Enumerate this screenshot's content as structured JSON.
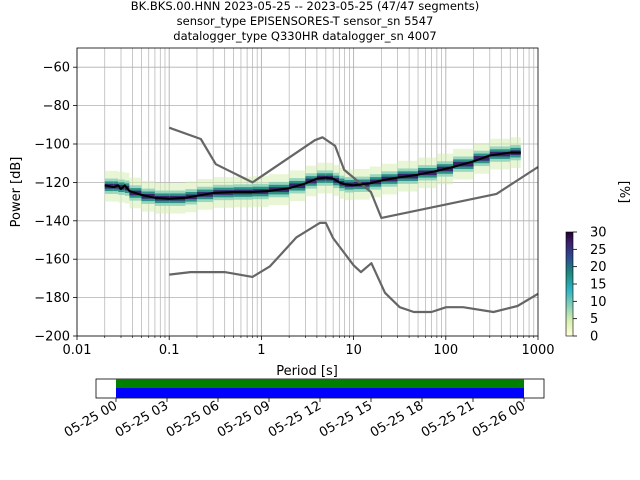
{
  "title_lines": [
    "BK.BKS.00.HNN   2023-05-25 -- 2023-05-25  (47/47 segments)",
    "sensor_type EPISENSORES-T sensor_sn 5547",
    "datalogger_type Q330HR datalogger_sn 4007"
  ],
  "chart_data": {
    "type": "line",
    "xlabel": "Period [s]",
    "ylabel": "Power [dB]",
    "xscale": "log",
    "xlim": [
      0.01,
      1000
    ],
    "ylim": [
      -200,
      -50
    ],
    "grid": true,
    "x_ticks": [
      0.01,
      0.1,
      1,
      10,
      100,
      1000
    ],
    "x_tick_labels": [
      "0.01",
      "0.1",
      "1",
      "10",
      "100",
      "1000"
    ],
    "y_ticks": [
      -200,
      -180,
      -160,
      -140,
      -120,
      -100,
      -80,
      -60
    ],
    "y_tick_labels": [
      "−200",
      "−180",
      "−160",
      "−140",
      "−120",
      "−100",
      "−80",
      "−60"
    ],
    "series": [
      {
        "role": "high-noise-model",
        "color": "#666666",
        "x": [
          0.1,
          0.22,
          0.32,
          0.8,
          3.8,
          4.6,
          6.3,
          7.9,
          15.4,
          20,
          354.8,
          1000
        ],
        "y": [
          -91.5,
          -97.4,
          -110.5,
          -120,
          -98,
          -96.5,
          -101,
          -113.5,
          -125,
          -138.5,
          -126,
          -112
        ]
      },
      {
        "role": "low-noise-model",
        "color": "#666666",
        "x": [
          0.1,
          0.17,
          0.4,
          0.8,
          1.24,
          2.4,
          4.3,
          5,
          6,
          10,
          12,
          15.6,
          21.9,
          31.6,
          45,
          70,
          101,
          154,
          328,
          600,
          1000
        ],
        "y": [
          -168,
          -166.7,
          -166.7,
          -169.2,
          -163.7,
          -148.6,
          -141.1,
          -141.1,
          -149,
          -163.2,
          -166.7,
          -162.1,
          -177.5,
          -185,
          -187.5,
          -187.5,
          -185,
          -185,
          -187.5,
          -184.4,
          -178
        ]
      },
      {
        "role": "mode",
        "color": "#000000",
        "x": [
          0.02,
          0.025,
          0.028,
          0.03,
          0.033,
          0.037,
          0.05,
          0.07,
          0.1,
          0.15,
          0.2,
          0.3,
          0.5,
          0.8,
          1.2,
          2,
          3,
          4,
          5,
          6,
          7,
          8,
          10,
          15,
          20,
          30,
          50,
          80,
          120,
          200,
          300,
          500,
          650
        ],
        "y": [
          -121.5,
          -122.5,
          -121.5,
          -123.5,
          -121.5,
          -124.5,
          -126.5,
          -128,
          -128.5,
          -128,
          -127,
          -125.5,
          -125,
          -125,
          -124.5,
          -123,
          -120.5,
          -118,
          -117.5,
          -118,
          -120,
          -121,
          -121.5,
          -120.5,
          -119,
          -117.5,
          -116,
          -114,
          -112,
          -109,
          -106,
          -104.5,
          -104.5
        ]
      }
    ],
    "histogram_colorbar": {
      "label": "[%]",
      "min": 0,
      "max": 30,
      "ticks": [
        0,
        5,
        10,
        15,
        20,
        25,
        30
      ],
      "colormap": [
        "#ffffd9",
        "#d6efb3",
        "#84cfb9",
        "#2eb1c2",
        "#1f8b7e",
        "#2c4d8f",
        "#3a1f6b",
        "#200030"
      ]
    }
  },
  "time_coverage": {
    "tick_labels": [
      "05-25 00",
      "05-25 03",
      "05-25 06",
      "05-25 09",
      "05-25 12",
      "05-25 15",
      "05-25 18",
      "05-25 21",
      "05-26 00"
    ],
    "coverage_color": "#008000",
    "data_color": "#0000ff"
  }
}
